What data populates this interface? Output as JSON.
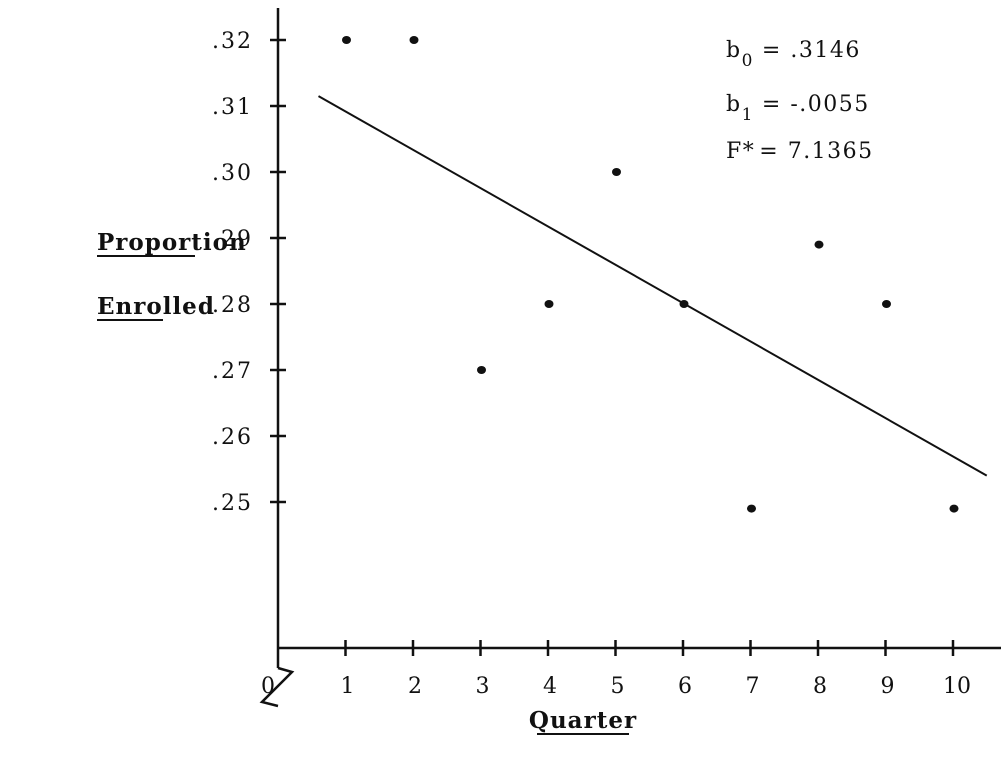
{
  "chart_data": {
    "type": "scatter",
    "xlabel": "Quarter",
    "ylabel": [
      "Proportion",
      "Enrolled"
    ],
    "xlim": [
      0,
      10
    ],
    "ylim": [
      0.25,
      0.32
    ],
    "x_ticks": [
      "0",
      "1",
      "2",
      "3",
      "4",
      "5",
      "6",
      "7",
      "8",
      "9",
      "10"
    ],
    "y_ticks": [
      ".32",
      ".31",
      ".30",
      ".29",
      ".28",
      ".27",
      ".26",
      ".25"
    ],
    "y_axis_break": true,
    "points": [
      {
        "x": 1,
        "y": 0.32
      },
      {
        "x": 2,
        "y": 0.32
      },
      {
        "x": 3,
        "y": 0.27
      },
      {
        "x": 4,
        "y": 0.28
      },
      {
        "x": 5,
        "y": 0.3
      },
      {
        "x": 6,
        "y": 0.28
      },
      {
        "x": 7,
        "y": 0.249
      },
      {
        "x": 8,
        "y": 0.289
      },
      {
        "x": 9,
        "y": 0.28
      },
      {
        "x": 10,
        "y": 0.249
      }
    ],
    "fit_line": {
      "x": [
        0.6,
        10.5
      ],
      "y": [
        0.3115,
        0.254
      ]
    },
    "annotations": {
      "b0_base": "b",
      "b0_sub": "0",
      "b0_value": "= .3146",
      "b1_base": "b",
      "b1_sub": "1",
      "b1_value": "= -.0055",
      "f_label": "F*",
      "f_value": "= 7.1365"
    },
    "colors": {
      "ink": "#111111",
      "background": "#ffffff"
    },
    "grid": false
  }
}
